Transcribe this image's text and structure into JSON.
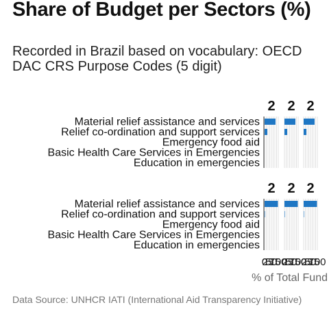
{
  "header": {
    "title": "Share of Budget per Sectors (%)",
    "subtitle": "Recorded in Brazil based on vocabulary: OECD DAC CRS Purpose Codes (5 digit)"
  },
  "footer": {
    "caption": "Data Source: UNHCR IATI (International Aid Transparency Initiative)"
  },
  "chart_data": {
    "type": "bar",
    "orientation": "horizontal",
    "xlabel": "% of Total Fund",
    "xlim": [
      0,
      100
    ],
    "x_ticks": [
      "0",
      "25",
      "50",
      "75",
      "100"
    ],
    "bar_color": "#1f77c4",
    "grid": true,
    "categories": [
      "Material relief assistance and services",
      "Relief co-ordination and support services",
      "Emergency food aid",
      "Basic Health Care Services in Emergencies",
      "Education in emergencies"
    ],
    "panels": [
      {
        "facets": [
          {
            "label": "2",
            "values": [
              80,
              20,
              0,
              0,
              0
            ]
          },
          {
            "label": "2",
            "values": [
              80,
              20,
              0,
              0,
              0
            ]
          },
          {
            "label": "2",
            "values": [
              80,
              20,
              0,
              0,
              0
            ]
          }
        ]
      },
      {
        "facets": [
          {
            "label": "2",
            "values": [
              97,
              3,
              0,
              0,
              0
            ]
          },
          {
            "label": "2",
            "values": [
              97,
              3,
              0,
              0,
              0
            ]
          },
          {
            "label": "2",
            "values": [
              97,
              3,
              0,
              0,
              0
            ]
          }
        ]
      }
    ]
  }
}
